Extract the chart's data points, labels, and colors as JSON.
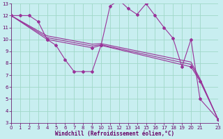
{
  "xlabel": "Windchill (Refroidissement éolien,°C)",
  "bg_color": "#c8eef0",
  "grid_color": "#a0d8c8",
  "line_color": "#993399",
  "xmin": 0,
  "xmax": 23,
  "ymin": 3,
  "ymax": 13,
  "wiggly_x": [
    0,
    1,
    2,
    3,
    4,
    5,
    6,
    7,
    8,
    9,
    10,
    11,
    12,
    13,
    14,
    15,
    16,
    17,
    18,
    19,
    20,
    21,
    23
  ],
  "wiggly_y": [
    12,
    12,
    12,
    11.5,
    10,
    9.5,
    8.3,
    7.3,
    7.3,
    7.3,
    9.5,
    12.8,
    13.3,
    12.6,
    12.1,
    13.0,
    12.0,
    11.0,
    10.1,
    7.7,
    10.0,
    5.0,
    3.3
  ],
  "diag1_x": [
    0,
    4,
    9,
    10,
    20,
    21,
    23
  ],
  "diag1_y": [
    12,
    10.0,
    9.3,
    9.5,
    7.7,
    6.5,
    3.3
  ],
  "diag2_x": [
    0,
    4,
    9,
    10,
    20,
    21,
    23
  ],
  "diag2_y": [
    12,
    10.15,
    9.45,
    9.55,
    7.9,
    6.6,
    3.3
  ],
  "diag3_x": [
    0,
    4,
    9,
    10,
    20,
    21,
    23
  ],
  "diag3_y": [
    12,
    10.3,
    9.6,
    9.65,
    8.1,
    6.7,
    3.3
  ],
  "xticks": [
    0,
    1,
    2,
    3,
    4,
    5,
    6,
    7,
    8,
    9,
    10,
    11,
    12,
    13,
    14,
    15,
    16,
    17,
    18,
    19,
    20,
    21,
    23
  ],
  "yticks": [
    3,
    4,
    5,
    6,
    7,
    8,
    9,
    10,
    11,
    12,
    13
  ]
}
